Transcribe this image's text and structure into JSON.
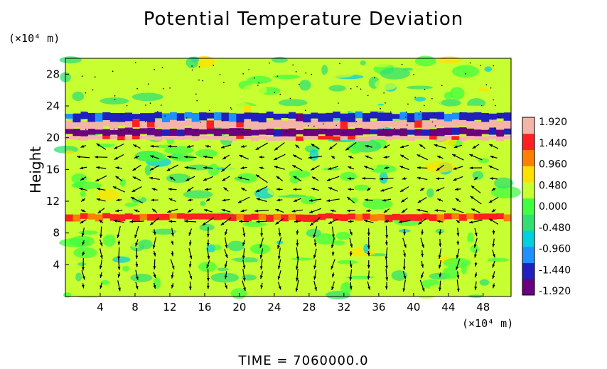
{
  "chart_data": {
    "type": "heatmap",
    "title": "Potential Temperature Deviation",
    "ylabel": "Height",
    "x_unit": "(×10⁴ m)",
    "y_unit": "(×10⁴ m)",
    "time_label": "TIME  =  7060000.0",
    "x_ticks": [
      4,
      8,
      12,
      16,
      20,
      24,
      28,
      32,
      36,
      40,
      44,
      48
    ],
    "y_ticks": [
      4,
      8,
      12,
      16,
      20,
      24,
      28
    ],
    "xlim": [
      0,
      51.2
    ],
    "ylim": [
      0,
      30
    ],
    "colorbar": {
      "labels": [
        "1.920",
        "1.440",
        "0.960",
        "0.480",
        "0.000",
        "-0.480",
        "-0.960",
        "-1.440",
        "-1.920"
      ],
      "range": [
        -1.92,
        1.92
      ],
      "colors": [
        "#6a0080",
        "#2020c0",
        "#1e90ff",
        "#00d0e0",
        "#30e070",
        "#40ff40",
        "#c8ff30",
        "#ffe000",
        "#ff8000",
        "#ff2020",
        "#f4b4a8"
      ]
    },
    "bands": [
      {
        "y": [
          20.2,
          21.2
        ],
        "value": -1.92
      },
      {
        "y": [
          19.7,
          20.2
        ],
        "value": 1.92
      },
      {
        "y": [
          21.2,
          22.2
        ],
        "value": 1.92
      },
      {
        "y": [
          22.2,
          23.2
        ],
        "value": -1.44
      },
      {
        "y": [
          9.6,
          10.4
        ],
        "value": 1.44
      },
      {
        "y": [
          23.2,
          24.0
        ],
        "value": 0.48
      }
    ],
    "grid": false
  }
}
